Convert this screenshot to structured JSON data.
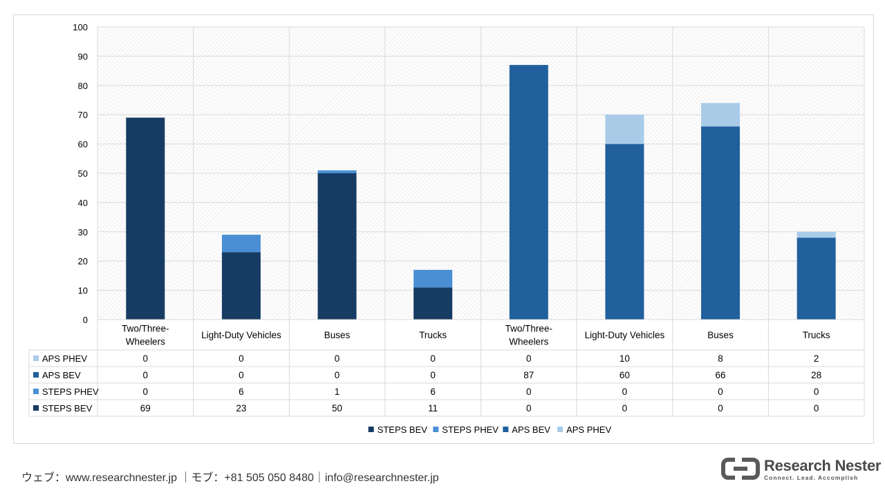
{
  "chart_data": {
    "type": "bar",
    "stacked": true,
    "categories": [
      "Two/Three-Wheelers",
      "Light-Duty Vehicles",
      "Buses",
      "Trucks",
      "Two/Three-Wheelers",
      "Light-Duty Vehicles",
      "Buses",
      "Trucks"
    ],
    "category_lines": [
      [
        "Two/Three-",
        "Wheelers"
      ],
      [
        "Light-Duty Vehicles"
      ],
      [
        "Buses"
      ],
      [
        "Trucks"
      ],
      [
        "Two/Three-",
        "Wheelers"
      ],
      [
        "Light-Duty Vehicles"
      ],
      [
        "Buses"
      ],
      [
        "Trucks"
      ]
    ],
    "series": [
      {
        "name": "STEPS BEV",
        "values": [
          69,
          23,
          50,
          11,
          0,
          0,
          0,
          0
        ],
        "color": "#173c64"
      },
      {
        "name": "STEPS PHEV",
        "values": [
          0,
          6,
          1,
          6,
          0,
          0,
          0,
          0
        ],
        "color": "#4a8fd4"
      },
      {
        "name": "APS BEV",
        "values": [
          0,
          0,
          0,
          0,
          87,
          60,
          66,
          28
        ],
        "color": "#21609c"
      },
      {
        "name": "APS PHEV",
        "values": [
          0,
          0,
          0,
          0,
          0,
          10,
          8,
          2
        ],
        "color": "#a9cbe8"
      }
    ],
    "table_row_order": [
      "APS PHEV",
      "APS BEV",
      "STEPS PHEV",
      "STEPS BEV"
    ],
    "ylim": [
      0,
      100
    ],
    "yticks": [
      "0",
      "10",
      "20",
      "30",
      "40",
      "50",
      "60",
      "70",
      "80",
      "90",
      "100"
    ],
    "grid": true,
    "legend_position": "bottom",
    "data_table": true
  },
  "footer": {
    "contact": "ウェブ：www.researchnester.jp ｜モブ：+81 505 050 8480｜info@researchnester.jp"
  },
  "logo": {
    "name": "Research Nester",
    "tagline": "Connect. Lead. Accomplish"
  }
}
